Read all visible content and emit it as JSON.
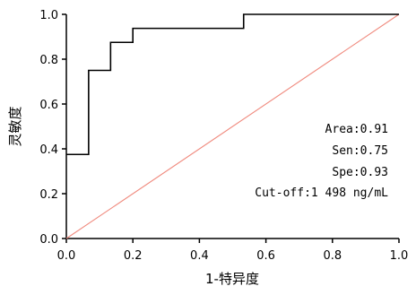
{
  "chart_data": {
    "type": "line",
    "title": "",
    "xlabel": "1-特异度",
    "ylabel": "灵敏度",
    "xlim": [
      0,
      1
    ],
    "ylim": [
      0,
      1
    ],
    "x_ticks": [
      "0.0",
      "0.2",
      "0.4",
      "0.6",
      "0.8",
      "1.0"
    ],
    "y_ticks": [
      "0.0",
      "0.2",
      "0.4",
      "0.6",
      "0.8",
      "1.0"
    ],
    "grid": false,
    "series": [
      {
        "color": "#000000",
        "step": true,
        "x": [
          0,
          0.067,
          0.067,
          0.133,
          0.133,
          0.2,
          0.2,
          0.533,
          0.533,
          1.0
        ],
        "y": [
          0.375,
          0.375,
          0.75,
          0.75,
          0.875,
          0.875,
          0.9375,
          0.9375,
          1.0,
          1.0
        ]
      },
      {
        "color": "#f08a7e",
        "x": [
          0,
          1
        ],
        "y": [
          0,
          1
        ]
      }
    ],
    "annotations": [
      "Area:0.91",
      "Sen:0.75",
      "Spe:0.93",
      "Cut-off:1 498 ng/mL"
    ]
  }
}
